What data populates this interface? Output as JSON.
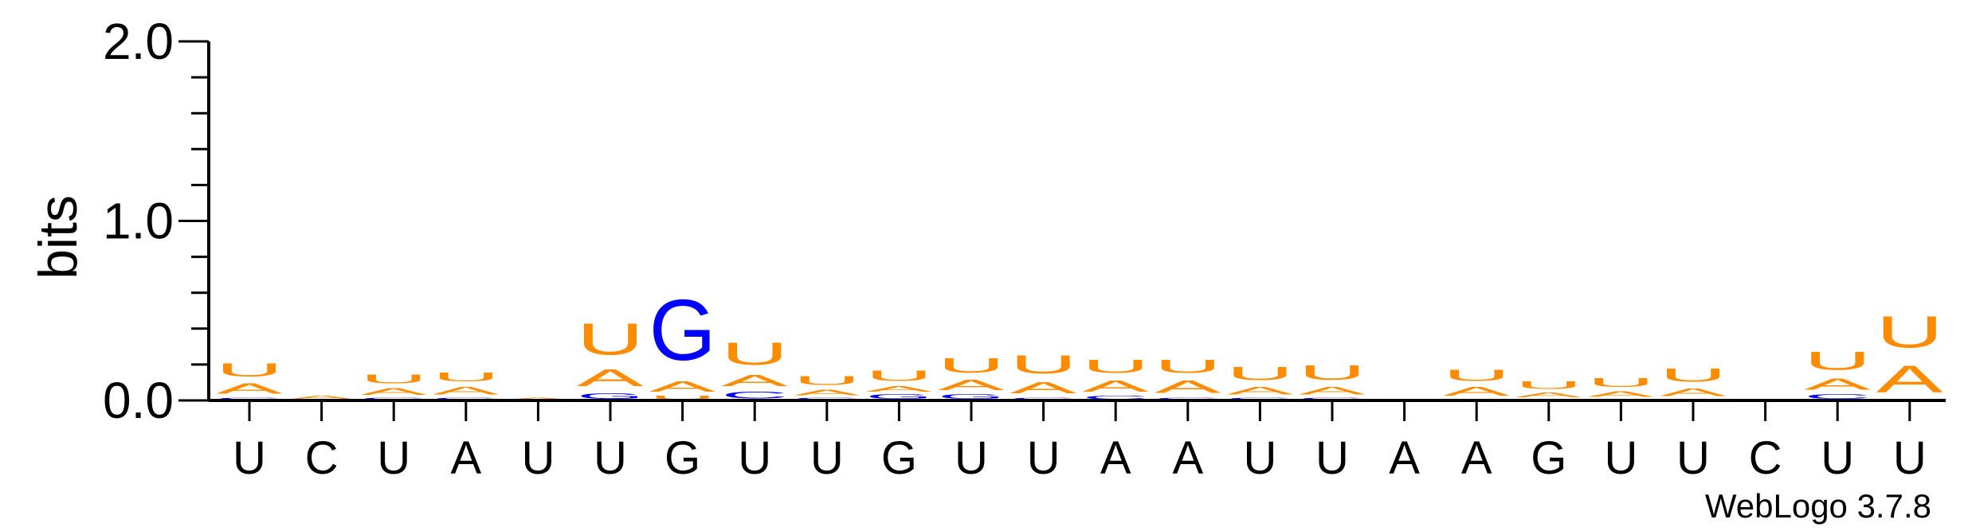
{
  "chart_data": {
    "type": "sequence-logo",
    "ylabel": "bits",
    "ylim": [
      0,
      2.0
    ],
    "yticks": [
      "0.0",
      "1.0",
      "2.0"
    ],
    "positions": [
      {
        "label": "U",
        "stack": [
          {
            "letter": "C",
            "bits": 0.02
          },
          {
            "letter": "A",
            "bits": 0.09
          },
          {
            "letter": "U",
            "bits": 0.12
          }
        ]
      },
      {
        "label": "C",
        "stack": [
          {
            "letter": "A",
            "bits": 0.03
          }
        ]
      },
      {
        "label": "U",
        "stack": [
          {
            "letter": "C",
            "bits": 0.02
          },
          {
            "letter": "A",
            "bits": 0.06
          },
          {
            "letter": "U",
            "bits": 0.08
          }
        ]
      },
      {
        "label": "A",
        "stack": [
          {
            "letter": "C",
            "bits": 0.02
          },
          {
            "letter": "A",
            "bits": 0.07
          },
          {
            "letter": "U",
            "bits": 0.08
          }
        ]
      },
      {
        "label": "U",
        "stack": [
          {
            "letter": "A",
            "bits": 0.02
          }
        ]
      },
      {
        "label": "U",
        "stack": [
          {
            "letter": "G",
            "bits": 0.05
          },
          {
            "letter": "A",
            "bits": 0.15
          },
          {
            "letter": "U",
            "bits": 0.28
          }
        ]
      },
      {
        "label": "G",
        "stack": [
          {
            "letter": "U",
            "bits": 0.03
          },
          {
            "letter": "A",
            "bits": 0.09
          },
          {
            "letter": "G",
            "bits": 0.54
          }
        ]
      },
      {
        "label": "U",
        "stack": [
          {
            "letter": "C",
            "bits": 0.06
          },
          {
            "letter": "A",
            "bits": 0.1
          },
          {
            "letter": "U",
            "bits": 0.2
          }
        ]
      },
      {
        "label": "U",
        "stack": [
          {
            "letter": "C",
            "bits": 0.02
          },
          {
            "letter": "A",
            "bits": 0.05
          },
          {
            "letter": "U",
            "bits": 0.08
          }
        ]
      },
      {
        "label": "G",
        "stack": [
          {
            "letter": "G",
            "bits": 0.04
          },
          {
            "letter": "A",
            "bits": 0.05
          },
          {
            "letter": "U",
            "bits": 0.09
          }
        ]
      },
      {
        "label": "U",
        "stack": [
          {
            "letter": "G",
            "bits": 0.04
          },
          {
            "letter": "A",
            "bits": 0.09
          },
          {
            "letter": "U",
            "bits": 0.13
          }
        ]
      },
      {
        "label": "U",
        "stack": [
          {
            "letter": "C",
            "bits": 0.02
          },
          {
            "letter": "A",
            "bits": 0.1
          },
          {
            "letter": "U",
            "bits": 0.16
          }
        ]
      },
      {
        "label": "A",
        "stack": [
          {
            "letter": "C",
            "bits": 0.03
          },
          {
            "letter": "A",
            "bits": 0.1
          },
          {
            "letter": "U",
            "bits": 0.12
          }
        ]
      },
      {
        "label": "A",
        "stack": [
          {
            "letter": "C",
            "bits": 0.02
          },
          {
            "letter": "A",
            "bits": 0.11
          },
          {
            "letter": "U",
            "bits": 0.12
          }
        ]
      },
      {
        "label": "U",
        "stack": [
          {
            "letter": "C",
            "bits": 0.02
          },
          {
            "letter": "A",
            "bits": 0.07
          },
          {
            "letter": "U",
            "bits": 0.12
          }
        ]
      },
      {
        "label": "U",
        "stack": [
          {
            "letter": "C",
            "bits": 0.02
          },
          {
            "letter": "A",
            "bits": 0.07
          },
          {
            "letter": "U",
            "bits": 0.13
          }
        ]
      },
      {
        "label": "A",
        "stack": []
      },
      {
        "label": "A",
        "stack": [
          {
            "letter": "C",
            "bits": 0.01
          },
          {
            "letter": "A",
            "bits": 0.08
          },
          {
            "letter": "U",
            "bits": 0.1
          }
        ]
      },
      {
        "label": "G",
        "stack": [
          {
            "letter": "C",
            "bits": 0.01
          },
          {
            "letter": "A",
            "bits": 0.04
          },
          {
            "letter": "U",
            "bits": 0.07
          }
        ]
      },
      {
        "label": "U",
        "stack": [
          {
            "letter": "C",
            "bits": 0.01
          },
          {
            "letter": "A",
            "bits": 0.05
          },
          {
            "letter": "U",
            "bits": 0.08
          }
        ]
      },
      {
        "label": "U",
        "stack": [
          {
            "letter": "C",
            "bits": 0.01
          },
          {
            "letter": "A",
            "bits": 0.07
          },
          {
            "letter": "U",
            "bits": 0.12
          }
        ]
      },
      {
        "label": "C",
        "stack": []
      },
      {
        "label": "U",
        "stack": [
          {
            "letter": "C",
            "bits": 0.04
          },
          {
            "letter": "A",
            "bits": 0.1
          },
          {
            "letter": "U",
            "bits": 0.16
          }
        ]
      },
      {
        "label": "U",
        "stack": [
          {
            "letter": "A",
            "bits": 0.24
          },
          {
            "letter": "U",
            "bits": 0.28
          }
        ]
      }
    ],
    "colors": {
      "A": "#ff8c00",
      "U": "#ff8c00",
      "G": "#0000ff",
      "C": "#0000ff"
    }
  },
  "footer": {
    "credit": "WebLogo 3.7.8"
  }
}
